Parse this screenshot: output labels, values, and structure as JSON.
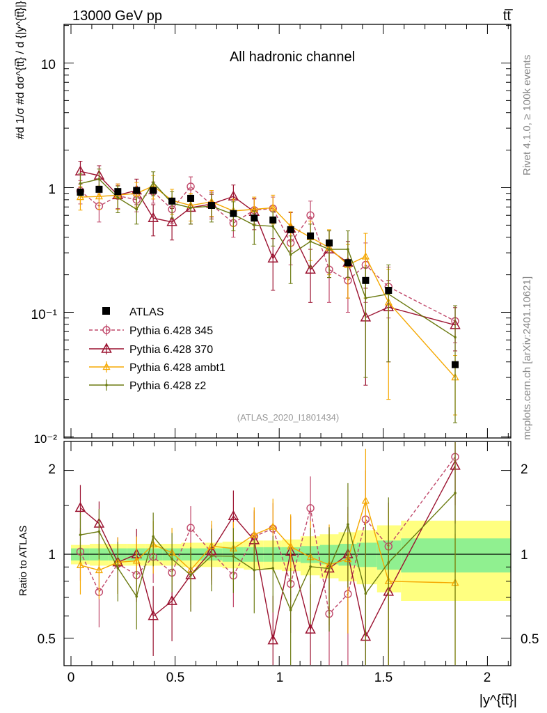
{
  "header": {
    "energy_label": "13000 GeV pp",
    "process_label": "tt̅",
    "rivet_label": "Rivet 4.1.0, ≥ 100k events",
    "source_label": "mcplots.cern.ch [arXiv:2401.10621]"
  },
  "main_panel": {
    "channel_title": "All hadronic channel",
    "analysis_id": "(ATLAS_2020_I1801434)",
    "ylabel": "#d 1/σ #d dσ^{tt̅} / d {|y^{tt̅}|}",
    "ytick_labels": [
      "10",
      "1",
      "10⁻¹",
      "10⁻²"
    ]
  },
  "ratio_panel": {
    "ylabel": "Ratio to ATLAS",
    "ytick_labels": [
      "2",
      "1",
      "0.5"
    ]
  },
  "xaxis": {
    "label": "|y^{tt̅}|",
    "tick_labels": [
      "0",
      "0.5",
      "1",
      "1.5",
      "2"
    ]
  },
  "colors": {
    "data": "#000000",
    "p345": "#c0486a",
    "p370": "#9b1230",
    "ambt1": "#f5a800",
    "z2": "#6b7a10",
    "band_inner": "#90f090",
    "band_outer": "#ffff80"
  },
  "chart_data": {
    "type": "scatter",
    "x": [
      0.045,
      0.135,
      0.225,
      0.315,
      0.395,
      0.485,
      0.575,
      0.675,
      0.78,
      0.88,
      0.97,
      1.055,
      1.15,
      1.24,
      1.33,
      1.415,
      1.525,
      1.845
    ],
    "xlim": [
      -0.05,
      2.15
    ],
    "ylim_main": [
      0.01,
      20
    ],
    "ylim_ratio": [
      0.42,
      2.35
    ],
    "legend_position": "center-left",
    "series": [
      {
        "name": "ATLAS",
        "style": "data",
        "values": [
          0.92,
          0.97,
          0.93,
          0.95,
          0.95,
          0.78,
          0.82,
          0.72,
          0.62,
          0.57,
          0.55,
          0.46,
          0.41,
          0.36,
          0.25,
          0.18,
          0.15,
          0.038
        ],
        "band_inner": [
          0.05,
          0.05,
          0.05,
          0.05,
          0.05,
          0.05,
          0.05,
          0.05,
          0.06,
          0.06,
          0.06,
          0.06,
          0.07,
          0.08,
          0.09,
          0.1,
          0.12,
          0.14
        ],
        "band_outer": [
          0.08,
          0.09,
          0.09,
          0.09,
          0.09,
          0.09,
          0.1,
          0.1,
          0.11,
          0.12,
          0.12,
          0.13,
          0.16,
          0.18,
          0.2,
          0.22,
          0.27,
          0.32
        ]
      },
      {
        "name": "Pythia 6.428 345",
        "style": "dashed-circle",
        "values": [
          0.94,
          0.71,
          0.86,
          0.8,
          0.93,
          0.67,
          1.02,
          0.73,
          0.52,
          0.66,
          0.68,
          0.36,
          0.6,
          0.22,
          0.18,
          0.24,
          0.16,
          0.085
        ],
        "errors": [
          0.2,
          0.18,
          0.18,
          0.16,
          0.18,
          0.15,
          0.2,
          0.15,
          0.12,
          0.15,
          0.16,
          0.12,
          0.18,
          0.1,
          0.08,
          0.12,
          0.07,
          0.028
        ]
      },
      {
        "name": "Pythia 6.428 370",
        "style": "solid-triangle",
        "values": [
          1.35,
          1.25,
          0.87,
          0.95,
          0.57,
          0.53,
          0.69,
          0.74,
          0.85,
          0.64,
          0.27,
          0.47,
          0.22,
          0.32,
          0.25,
          0.091,
          0.11,
          0.079
        ],
        "errors": [
          0.28,
          0.25,
          0.2,
          0.22,
          0.16,
          0.15,
          0.18,
          0.18,
          0.2,
          0.18,
          0.12,
          0.16,
          0.1,
          0.13,
          0.12,
          0.065,
          0.07,
          0.03
        ]
      },
      {
        "name": "Pythia 6.428 ambt1",
        "style": "solid-small-triangle",
        "values": [
          0.84,
          0.85,
          0.87,
          0.9,
          1.03,
          0.79,
          0.72,
          0.77,
          0.65,
          0.67,
          0.69,
          0.49,
          0.4,
          0.33,
          0.24,
          0.28,
          0.12,
          0.03
        ],
        "errors": [
          0.18,
          0.18,
          0.2,
          0.2,
          0.22,
          0.18,
          0.18,
          0.18,
          0.16,
          0.17,
          0.18,
          0.15,
          0.14,
          0.13,
          0.11,
          0.15,
          0.1,
          0.015
        ]
      },
      {
        "name": "Pythia 6.428 z2",
        "style": "solid-dot",
        "values": [
          1.08,
          1.17,
          0.83,
          0.67,
          1.1,
          0.75,
          0.69,
          0.71,
          0.61,
          0.5,
          0.49,
          0.29,
          0.37,
          0.32,
          0.32,
          0.13,
          0.14,
          0.063
        ],
        "errors": [
          0.22,
          0.24,
          0.2,
          0.16,
          0.24,
          0.18,
          0.18,
          0.18,
          0.16,
          0.15,
          0.15,
          0.12,
          0.14,
          0.13,
          0.13,
          0.1,
          0.1,
          0.05
        ]
      }
    ]
  }
}
